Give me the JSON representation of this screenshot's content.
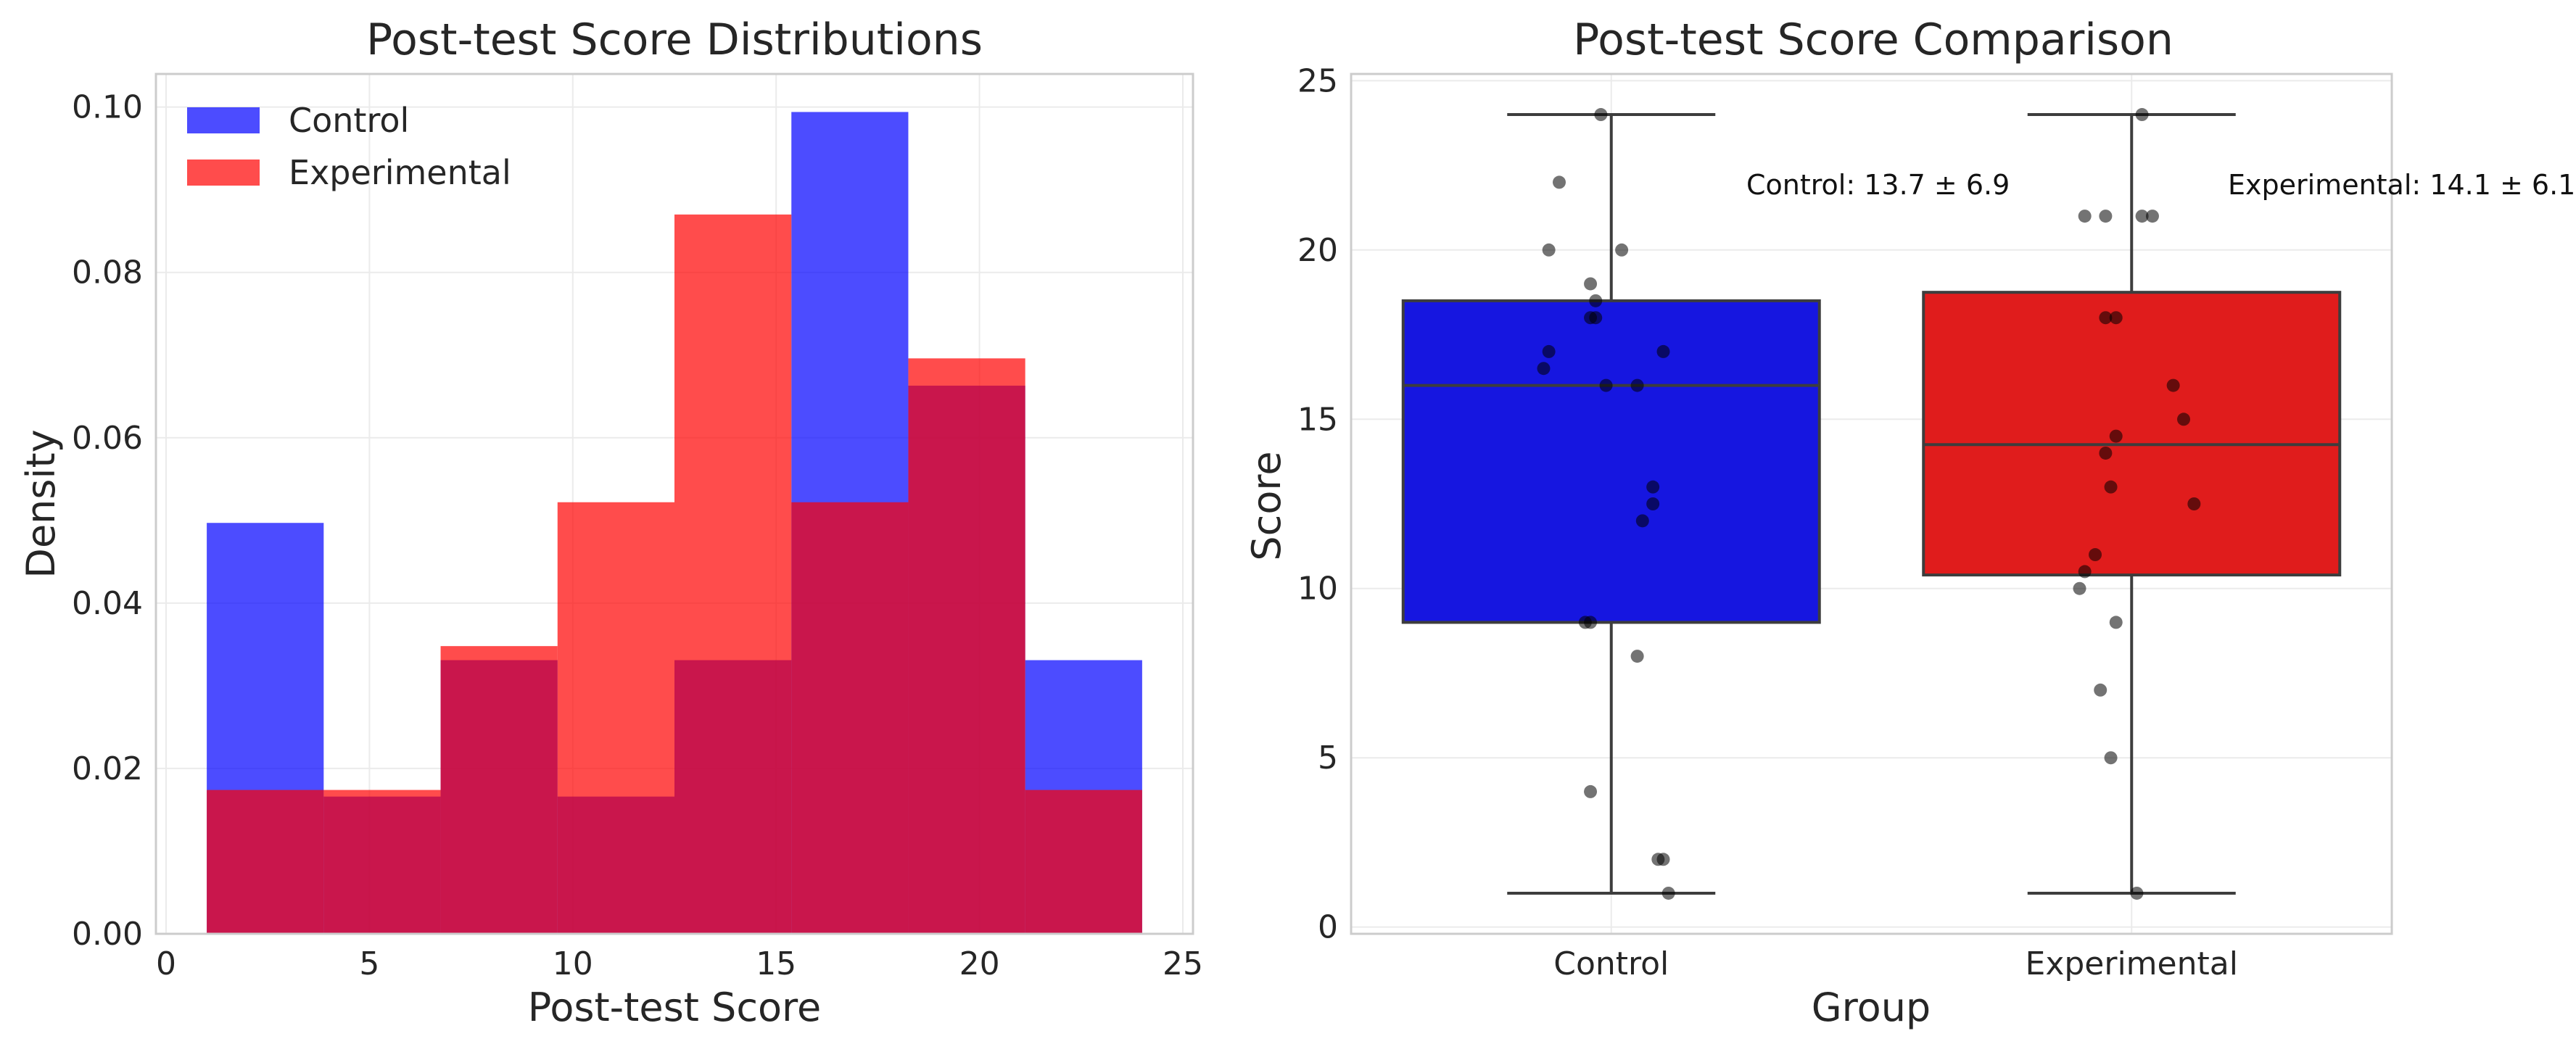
{
  "chart_data": [
    {
      "type": "histogram",
      "title": "Post-test Score Distributions",
      "xlabel": "Post-test Score",
      "ylabel": "Density",
      "xlim": [
        -0.25,
        25.25
      ],
      "ylim": [
        0,
        0.104
      ],
      "xticks": [
        0,
        5,
        10,
        15,
        20,
        25
      ],
      "yticks": [
        0.0,
        0.02,
        0.04,
        0.06,
        0.08,
        0.1
      ],
      "ytick_labels": [
        "0.00",
        "0.02",
        "0.04",
        "0.06",
        "0.08",
        "0.10"
      ],
      "bin_edges": [
        1.0,
        3.875,
        6.75,
        9.625,
        12.5,
        15.375,
        18.25,
        21.125,
        24.0
      ],
      "grid": true,
      "legend_position": "top-left",
      "series": [
        {
          "name": "Control",
          "color": "#0000ff",
          "alpha": 0.7,
          "values": [
            0.0497,
            0.0166,
            0.0331,
            0.0166,
            0.0331,
            0.0994,
            0.0663,
            0.0331
          ]
        },
        {
          "name": "Experimental",
          "color": "#ff0000",
          "alpha": 0.7,
          "values": [
            0.0174,
            0.0174,
            0.0348,
            0.0522,
            0.087,
            0.0522,
            0.0696,
            0.0174
          ]
        }
      ]
    },
    {
      "type": "box",
      "title": "Post-test Score Comparison",
      "xlabel": "Group",
      "ylabel": "Score",
      "ylim": [
        -0.2,
        25.2
      ],
      "yticks": [
        0,
        5,
        10,
        15,
        20,
        25
      ],
      "categories": [
        "Control",
        "Experimental"
      ],
      "grid": true,
      "boxes": [
        {
          "name": "Control",
          "color": "#1616e0",
          "whisker_low": 1,
          "q1": 9,
          "median": 16,
          "q3": 18.5,
          "whisker_high": 24,
          "annotation": "Control: 13.7 ± 6.9",
          "points": [
            {
              "x": -0.02,
              "y": 24
            },
            {
              "x": -0.1,
              "y": 22
            },
            {
              "x": -0.12,
              "y": 20
            },
            {
              "x": 0.02,
              "y": 20
            },
            {
              "x": -0.04,
              "y": 19
            },
            {
              "x": -0.03,
              "y": 18.5
            },
            {
              "x": -0.04,
              "y": 18
            },
            {
              "x": -0.03,
              "y": 18
            },
            {
              "x": -0.12,
              "y": 17
            },
            {
              "x": 0.1,
              "y": 17
            },
            {
              "x": -0.13,
              "y": 16.5
            },
            {
              "x": -0.01,
              "y": 16
            },
            {
              "x": 0.05,
              "y": 16
            },
            {
              "x": 0.08,
              "y": 13
            },
            {
              "x": 0.08,
              "y": 12.5
            },
            {
              "x": 0.06,
              "y": 12
            },
            {
              "x": -0.05,
              "y": 9
            },
            {
              "x": -0.04,
              "y": 9
            },
            {
              "x": 0.05,
              "y": 8
            },
            {
              "x": -0.04,
              "y": 4
            },
            {
              "x": 0.09,
              "y": 2
            },
            {
              "x": 0.1,
              "y": 2
            },
            {
              "x": 0.11,
              "y": 1
            }
          ]
        },
        {
          "name": "Experimental",
          "color": "#e01c1c",
          "whisker_low": 1,
          "q1": 10.4,
          "median": 14.25,
          "q3": 18.75,
          "whisker_high": 24,
          "annotation": "Experimental: 14.1 ± 6.1",
          "points": [
            {
              "x": 0.02,
              "y": 24
            },
            {
              "x": -0.09,
              "y": 21
            },
            {
              "x": -0.05,
              "y": 21
            },
            {
              "x": 0.02,
              "y": 21
            },
            {
              "x": 0.04,
              "y": 21
            },
            {
              "x": -0.05,
              "y": 18
            },
            {
              "x": -0.03,
              "y": 18
            },
            {
              "x": 0.08,
              "y": 16
            },
            {
              "x": 0.1,
              "y": 15
            },
            {
              "x": -0.03,
              "y": 14.5
            },
            {
              "x": -0.05,
              "y": 14
            },
            {
              "x": -0.04,
              "y": 13
            },
            {
              "x": 0.12,
              "y": 12.5
            },
            {
              "x": -0.07,
              "y": 11
            },
            {
              "x": -0.09,
              "y": 10.5
            },
            {
              "x": -0.1,
              "y": 10
            },
            {
              "x": -0.03,
              "y": 9
            },
            {
              "x": -0.06,
              "y": 7
            },
            {
              "x": -0.04,
              "y": 5
            },
            {
              "x": 0.01,
              "y": 1
            }
          ]
        }
      ]
    }
  ]
}
